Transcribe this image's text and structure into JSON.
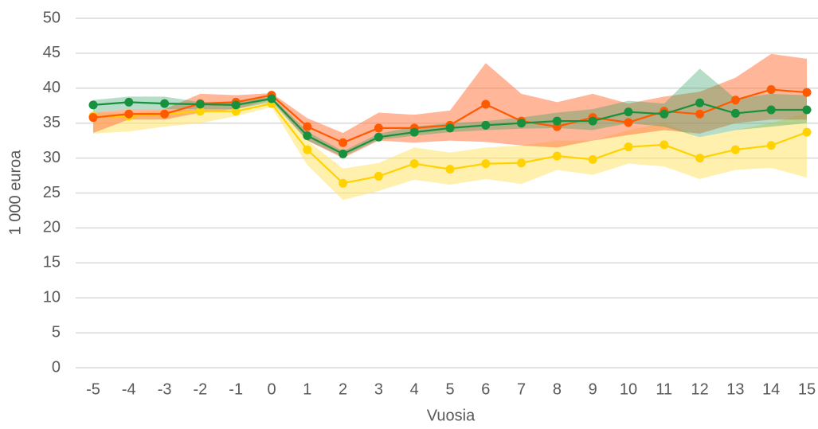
{
  "chart_data": {
    "type": "line",
    "xlabel": "Vuosia",
    "ylabel": "1 000 euroa",
    "x": [
      -5,
      -4,
      -3,
      -2,
      -1,
      0,
      1,
      2,
      3,
      4,
      5,
      6,
      7,
      8,
      9,
      10,
      11,
      12,
      13,
      14,
      15
    ],
    "xlim": [
      -5,
      15
    ],
    "xticks": [
      -5,
      -4,
      -3,
      -2,
      -1,
      0,
      1,
      2,
      3,
      4,
      5,
      6,
      7,
      8,
      9,
      10,
      11,
      12,
      13,
      14,
      15
    ],
    "ylim": [
      0,
      50
    ],
    "yticks": [
      0,
      5,
      10,
      15,
      20,
      25,
      30,
      35,
      40,
      45,
      50
    ],
    "grid": true,
    "series": [
      {
        "color": "#ffd200",
        "band_color": "#ffe46b",
        "values": [
          36.0,
          36.0,
          36.3,
          36.7,
          36.7,
          37.8,
          31.2,
          26.4,
          27.4,
          29.2,
          28.4,
          29.2,
          29.3,
          30.3,
          29.8,
          31.6,
          31.9,
          30.0,
          31.2,
          31.8,
          33.7
        ],
        "lower": [
          33.5,
          33.8,
          34.5,
          35.0,
          36.0,
          37.3,
          29.0,
          24.0,
          25.3,
          26.9,
          26.2,
          27.0,
          26.3,
          28.3,
          27.6,
          29.2,
          28.8,
          27.0,
          28.3,
          28.6,
          27.2
        ],
        "upper": [
          36.5,
          36.5,
          36.8,
          37.0,
          37.0,
          38.2,
          32.5,
          28.5,
          29.3,
          31.5,
          30.8,
          31.5,
          31.8,
          32.5,
          32.5,
          34.0,
          35.0,
          33.0,
          34.0,
          35.0,
          36.5
        ]
      },
      {
        "color": "#ff5a00",
        "band_color": "#ff7a45",
        "values": [
          35.8,
          36.3,
          36.3,
          37.8,
          38.0,
          39.0,
          34.5,
          32.2,
          34.3,
          34.3,
          34.7,
          37.7,
          35.3,
          34.5,
          35.8,
          35.1,
          36.7,
          36.3,
          38.3,
          39.8,
          39.4
        ],
        "lower": [
          33.6,
          35.5,
          35.5,
          36.5,
          37.0,
          38.3,
          32.5,
          30.0,
          32.5,
          32.2,
          32.5,
          32.3,
          31.8,
          31.5,
          32.5,
          33.3,
          34.0,
          33.5,
          35.0,
          35.5,
          35.5
        ],
        "upper": [
          36.5,
          37.0,
          37.0,
          39.2,
          39.0,
          39.3,
          35.7,
          33.6,
          36.5,
          36.2,
          36.8,
          43.6,
          39.2,
          38.0,
          39.2,
          37.8,
          38.8,
          39.5,
          41.5,
          44.9,
          44.2
        ]
      },
      {
        "color": "#17913e",
        "band_color": "#2e9e5e",
        "values": [
          37.6,
          38.0,
          37.8,
          37.7,
          37.6,
          38.5,
          33.2,
          30.6,
          33.0,
          33.7,
          34.3,
          34.7,
          35.0,
          35.3,
          35.3,
          36.6,
          36.3,
          37.9,
          36.4,
          36.9,
          36.9
        ],
        "lower": [
          36.5,
          37.0,
          37.0,
          37.0,
          37.0,
          38.0,
          32.5,
          30.2,
          32.6,
          33.2,
          33.7,
          34.0,
          34.2,
          34.3,
          34.0,
          35.0,
          34.5,
          33.0,
          34.0,
          34.5,
          35.0
        ],
        "upper": [
          38.3,
          38.8,
          38.8,
          38.0,
          38.0,
          38.8,
          33.8,
          31.0,
          33.5,
          34.5,
          35.0,
          35.3,
          35.8,
          36.5,
          37.0,
          38.2,
          37.8,
          42.8,
          38.5,
          39.2,
          39.0
        ]
      }
    ]
  }
}
